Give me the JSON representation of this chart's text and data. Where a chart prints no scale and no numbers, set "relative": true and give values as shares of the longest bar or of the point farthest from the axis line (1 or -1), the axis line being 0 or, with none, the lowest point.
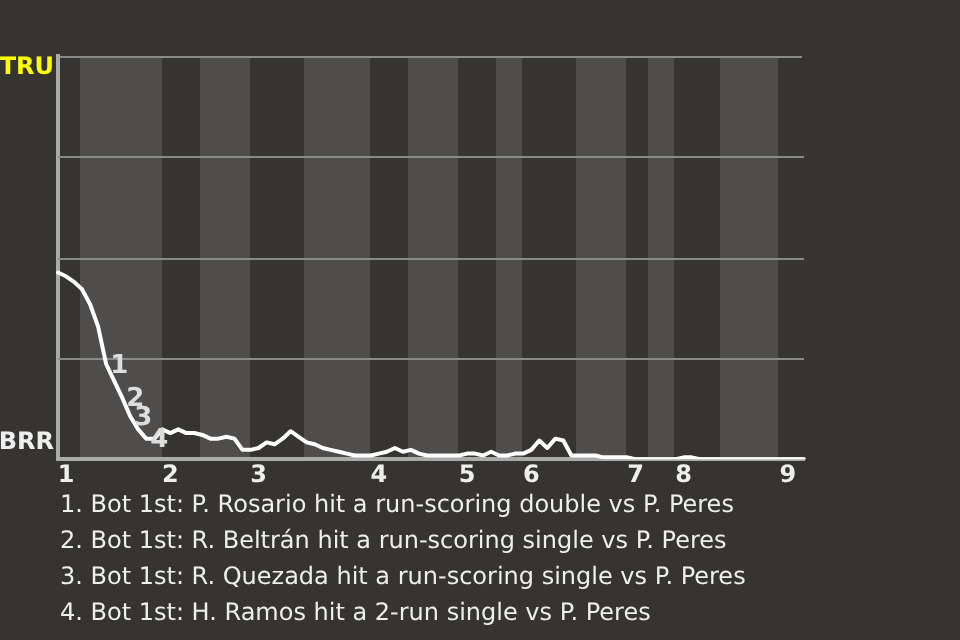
{
  "chart_data": {
    "type": "line",
    "relative": true,
    "categories": [
      null,
      "1",
      null,
      null,
      null,
      null,
      null,
      null,
      null,
      null,
      null,
      null,
      null,
      null,
      "2",
      null,
      null,
      null,
      null,
      null,
      null,
      null,
      null,
      null,
      null,
      "3",
      null,
      null,
      null,
      null,
      null,
      null,
      null,
      null,
      null,
      null,
      null,
      null,
      null,
      null,
      "4",
      null,
      null,
      null,
      null,
      null,
      null,
      null,
      null,
      null,
      null,
      "5",
      null,
      null,
      null,
      null,
      null,
      null,
      null,
      "6",
      null,
      null,
      null,
      null,
      null,
      null,
      null,
      null,
      null,
      null,
      null,
      null,
      "7",
      null,
      null,
      null,
      null,
      null,
      "8",
      null,
      null,
      null,
      null,
      null,
      null,
      null,
      null,
      null,
      null,
      null,
      null,
      "9",
      null,
      null
    ],
    "series": [
      {
        "color": "#ffffff",
        "values": [
          1,
          0.98,
          0.95,
          0.91,
          0.83,
          0.71,
          0.51,
          0.42,
          0.33,
          0.23,
          0.16,
          0.11,
          0.11,
          0.16,
          0.14,
          0.16,
          0.14,
          0.14,
          0.13,
          0.11,
          0.11,
          0.12,
          0.11,
          0.05,
          0.05,
          0.06,
          0.09,
          0.08,
          0.11,
          0.15,
          0.12,
          0.09,
          0.08,
          0.06,
          0.05,
          0.04,
          0.03,
          0.02,
          0.02,
          0.02,
          0.03,
          0.04,
          0.06,
          0.04,
          0.05,
          0.03,
          0.02,
          0.02,
          0.02,
          0.02,
          0.02,
          0.03,
          0.03,
          0.02,
          0.04,
          0.02,
          0.02,
          0.03,
          0.03,
          0.05,
          0.1,
          0.06,
          0.11,
          0.1,
          0.02,
          0.02,
          0.02,
          0.02,
          0.01,
          0.01,
          0.01,
          0.01,
          0,
          0,
          0,
          0,
          0,
          0,
          0.01,
          0.01,
          0,
          0,
          0,
          0,
          0,
          0,
          0,
          0,
          0,
          0,
          0,
          0,
          0,
          0
        ]
      }
    ],
    "marker": "none",
    "ref_lines": [
      {
        "axis": "y",
        "value": 0.54,
        "color": "#8a8a88"
      },
      {
        "axis": "y",
        "value": 1.08,
        "color": "#8a8a88"
      },
      {
        "axis": "y",
        "value": 1.62,
        "color": "#8a8a88"
      }
    ],
    "annotations": [
      "TRU",
      "BRR",
      {
        "text": "1",
        "y": 0.51
      },
      {
        "text": "2",
        "y": 0.33
      },
      {
        "text": "3",
        "y": 0.23
      },
      {
        "text": "4",
        "y": 0.11
      },
      "1. Bot 1st: P. Rosario hit a run-scoring double vs P. Peres",
      "2. Bot 1st: R. Beltrán hit a run-scoring single vs P. Peres",
      "3. Bot 1st: R. Quezada hit a run-scoring single vs P. Peres",
      "4. Bot 1st: H. Ramos hit a 2-run single vs P. Peres"
    ]
  }
}
